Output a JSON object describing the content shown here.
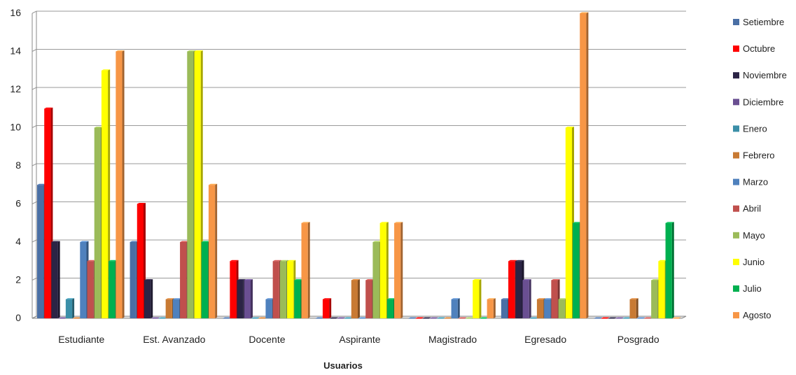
{
  "chart_data": {
    "type": "bar",
    "xlabel": "Usuarios",
    "ylim": [
      0,
      16
    ],
    "yticks": [
      "0",
      "2",
      "4",
      "6",
      "8",
      "10",
      "12",
      "14",
      "16"
    ],
    "grid": true,
    "legend_position": "right",
    "categories": [
      "Estudiante",
      "Est. Avanzado",
      "Docente",
      "Aspirante",
      "Magistrado",
      "Egresado",
      "Posgrado"
    ],
    "series": [
      {
        "name": "Setiembre",
        "color": "#4a6fa5",
        "values": [
          7,
          4,
          0,
          0,
          0,
          1,
          0
        ]
      },
      {
        "name": "Octubre",
        "color": "#ff0000",
        "values": [
          11,
          6,
          3,
          1,
          0,
          3,
          0
        ]
      },
      {
        "name": "Noviembre",
        "color": "#2b2445",
        "values": [
          4,
          2,
          2,
          0,
          0,
          3,
          0
        ]
      },
      {
        "name": "Diciembre",
        "color": "#6a4f92",
        "values": [
          0,
          0,
          2,
          0,
          0,
          2,
          0
        ]
      },
      {
        "name": "Enero",
        "color": "#3b8fa8",
        "values": [
          1,
          0,
          0,
          0,
          0,
          0,
          0
        ]
      },
      {
        "name": "Febrero",
        "color": "#c87a33",
        "values": [
          0,
          1,
          0,
          2,
          0,
          1,
          1
        ]
      },
      {
        "name": "Marzo",
        "color": "#4f81bd",
        "values": [
          4,
          1,
          1,
          0,
          1,
          1,
          0
        ]
      },
      {
        "name": "Abril",
        "color": "#c0504d",
        "values": [
          3,
          4,
          3,
          2,
          0,
          2,
          0
        ]
      },
      {
        "name": "Mayo",
        "color": "#9bbb59",
        "values": [
          10,
          14,
          3,
          4,
          0,
          1,
          2
        ]
      },
      {
        "name": "Junio",
        "color": "#ffff00",
        "values": [
          13,
          14,
          3,
          5,
          2,
          10,
          3
        ]
      },
      {
        "name": "Julio",
        "color": "#00b050",
        "values": [
          3,
          4,
          2,
          1,
          0,
          5,
          5
        ]
      },
      {
        "name": "Agosto",
        "color": "#f79646",
        "values": [
          14,
          7,
          5,
          5,
          1,
          16,
          0
        ]
      }
    ]
  }
}
